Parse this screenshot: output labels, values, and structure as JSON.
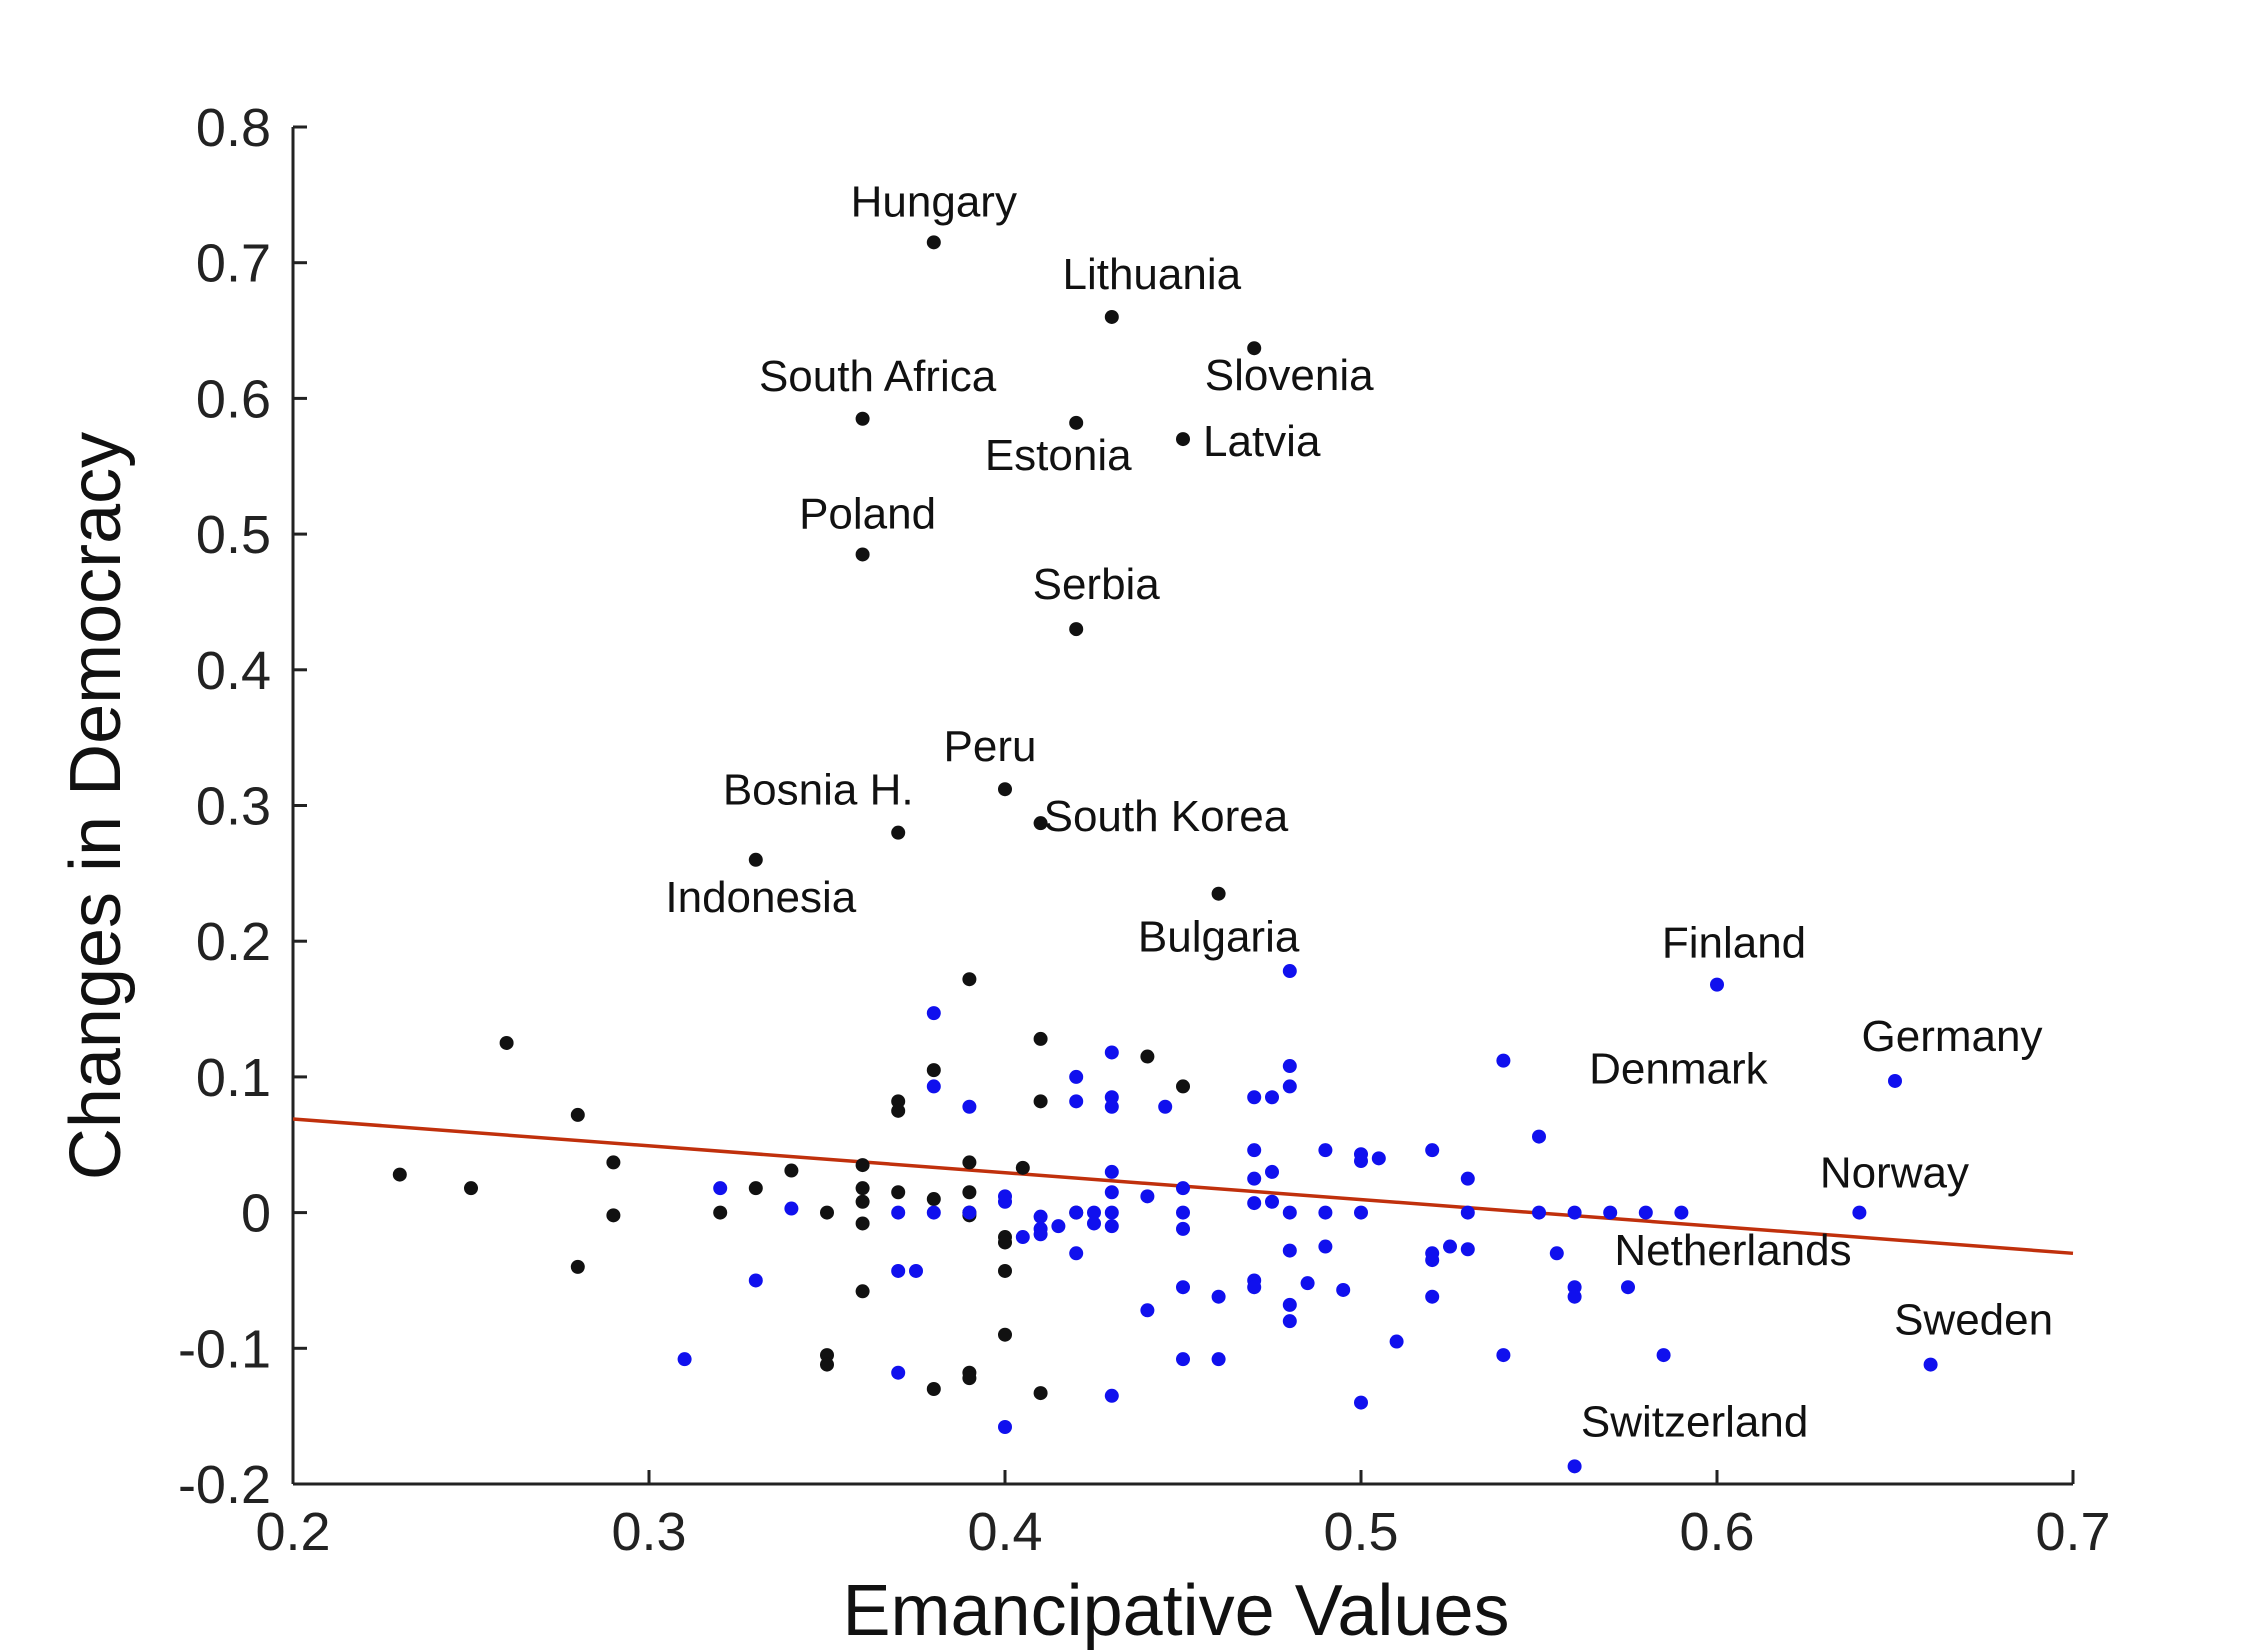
{
  "chart_data": {
    "type": "scatter",
    "xlabel": "Emancipative Values",
    "ylabel": "Changes in Democracy",
    "xlim": [
      0.2,
      0.7
    ],
    "ylim": [
      -0.2,
      0.8
    ],
    "xticks": [
      "0.2",
      "0.3",
      "0.4",
      "0.5",
      "0.6",
      "0.7"
    ],
    "yticks": [
      "-0.2",
      "-0.1",
      "0",
      "0.1",
      "0.2",
      "0.3",
      "0.4",
      "0.5",
      "0.6",
      "0.7",
      "0.8"
    ],
    "grid": false,
    "colors": {
      "black_series": "#111111",
      "blue_series": "#1010ee",
      "trend": "#c0300c"
    },
    "trend_line": {
      "x": [
        0.2,
        0.7
      ],
      "y": [
        0.069,
        -0.03
      ]
    },
    "labeled_points": [
      {
        "label": "Hungary",
        "x": 0.38,
        "y": 0.715,
        "series": "black"
      },
      {
        "label": "Lithuania",
        "x": 0.43,
        "y": 0.66,
        "series": "black"
      },
      {
        "label": "Slovenia",
        "x": 0.47,
        "y": 0.637,
        "series": "black"
      },
      {
        "label": "South Africa",
        "x": 0.36,
        "y": 0.585,
        "series": "black"
      },
      {
        "label": "Estonia",
        "x": 0.42,
        "y": 0.582,
        "series": "black"
      },
      {
        "label": "Latvia",
        "x": 0.45,
        "y": 0.57,
        "series": "black"
      },
      {
        "label": "Poland",
        "x": 0.36,
        "y": 0.485,
        "series": "black"
      },
      {
        "label": "Serbia",
        "x": 0.42,
        "y": 0.43,
        "series": "black"
      },
      {
        "label": "Peru",
        "x": 0.4,
        "y": 0.312,
        "series": "black"
      },
      {
        "label": "Bosnia H.",
        "x": 0.37,
        "y": 0.28,
        "series": "black"
      },
      {
        "label": "South Korea",
        "x": 0.41,
        "y": 0.287,
        "series": "black"
      },
      {
        "label": "Indonesia",
        "x": 0.33,
        "y": 0.26,
        "series": "black"
      },
      {
        "label": "Bulgaria",
        "x": 0.46,
        "y": 0.235,
        "series": "black"
      },
      {
        "label": "Finland",
        "x": 0.6,
        "y": 0.168,
        "series": "blue"
      },
      {
        "label": "Germany",
        "x": 0.65,
        "y": 0.097,
        "series": "blue"
      },
      {
        "label": "Denmark",
        "x": 0.54,
        "y": 0.112,
        "series": "blue"
      },
      {
        "label": "Norway",
        "x": 0.64,
        "y": 0.0,
        "series": "blue"
      },
      {
        "label": "Netherlands",
        "x": 0.575,
        "y": -0.055,
        "series": "blue"
      },
      {
        "label": "Sweden",
        "x": 0.66,
        "y": -0.112,
        "series": "blue"
      },
      {
        "label": "Switzerland",
        "x": 0.56,
        "y": -0.187,
        "series": "blue"
      }
    ],
    "series": [
      {
        "color_key": "black",
        "points": [
          [
            0.23,
            0.028
          ],
          [
            0.25,
            0.018
          ],
          [
            0.26,
            0.125
          ],
          [
            0.28,
            0.072
          ],
          [
            0.28,
            -0.04
          ],
          [
            0.29,
            0.037
          ],
          [
            0.29,
            -0.002
          ],
          [
            0.32,
            0.0
          ],
          [
            0.33,
            0.018
          ],
          [
            0.34,
            0.031
          ],
          [
            0.35,
            0.0
          ],
          [
            0.35,
            -0.105
          ],
          [
            0.35,
            -0.112
          ],
          [
            0.36,
            0.035
          ],
          [
            0.36,
            0.018
          ],
          [
            0.36,
            0.008
          ],
          [
            0.36,
            -0.008
          ],
          [
            0.36,
            -0.058
          ],
          [
            0.37,
            0.082
          ],
          [
            0.37,
            0.075
          ],
          [
            0.37,
            0.015
          ],
          [
            0.38,
            0.105
          ],
          [
            0.38,
            0.01
          ],
          [
            0.38,
            -0.13
          ],
          [
            0.39,
            0.172
          ],
          [
            0.39,
            0.037
          ],
          [
            0.39,
            0.015
          ],
          [
            0.39,
            0.0
          ],
          [
            0.39,
            -0.002
          ],
          [
            0.39,
            -0.118
          ],
          [
            0.39,
            -0.122
          ],
          [
            0.4,
            -0.018
          ],
          [
            0.4,
            -0.022
          ],
          [
            0.4,
            -0.043
          ],
          [
            0.4,
            -0.09
          ],
          [
            0.405,
            0.033
          ],
          [
            0.41,
            0.128
          ],
          [
            0.41,
            0.082
          ],
          [
            0.41,
            -0.133
          ],
          [
            0.42,
            0.0
          ],
          [
            0.44,
            0.115
          ],
          [
            0.45,
            0.093
          ]
        ]
      },
      {
        "color_key": "blue",
        "points": [
          [
            0.31,
            -0.108
          ],
          [
            0.32,
            0.018
          ],
          [
            0.33,
            -0.05
          ],
          [
            0.34,
            0.003
          ],
          [
            0.37,
            0.0
          ],
          [
            0.37,
            -0.043
          ],
          [
            0.37,
            -0.118
          ],
          [
            0.375,
            -0.043
          ],
          [
            0.38,
            0.147
          ],
          [
            0.38,
            0.093
          ],
          [
            0.38,
            0.0
          ],
          [
            0.39,
            0.078
          ],
          [
            0.39,
            0.0
          ],
          [
            0.4,
            0.012
          ],
          [
            0.4,
            0.008
          ],
          [
            0.4,
            -0.158
          ],
          [
            0.405,
            -0.018
          ],
          [
            0.41,
            -0.003
          ],
          [
            0.41,
            -0.012
          ],
          [
            0.41,
            -0.016
          ],
          [
            0.415,
            -0.01
          ],
          [
            0.42,
            0.1
          ],
          [
            0.42,
            0.082
          ],
          [
            0.42,
            0.0
          ],
          [
            0.42,
            -0.03
          ],
          [
            0.425,
            0.0
          ],
          [
            0.425,
            -0.008
          ],
          [
            0.43,
            0.118
          ],
          [
            0.43,
            0.085
          ],
          [
            0.43,
            0.078
          ],
          [
            0.43,
            0.03
          ],
          [
            0.43,
            0.015
          ],
          [
            0.43,
            0.0
          ],
          [
            0.43,
            -0.01
          ],
          [
            0.43,
            -0.135
          ],
          [
            0.44,
            0.012
          ],
          [
            0.44,
            -0.072
          ],
          [
            0.445,
            0.078
          ],
          [
            0.45,
            0.018
          ],
          [
            0.45,
            0.0
          ],
          [
            0.45,
            -0.012
          ],
          [
            0.45,
            -0.055
          ],
          [
            0.45,
            -0.108
          ],
          [
            0.46,
            -0.062
          ],
          [
            0.46,
            -0.108
          ],
          [
            0.47,
            0.085
          ],
          [
            0.47,
            0.046
          ],
          [
            0.47,
            0.025
          ],
          [
            0.47,
            0.007
          ],
          [
            0.47,
            -0.05
          ],
          [
            0.47,
            -0.055
          ],
          [
            0.475,
            0.085
          ],
          [
            0.475,
            0.03
          ],
          [
            0.475,
            0.008
          ],
          [
            0.48,
            0.178
          ],
          [
            0.48,
            0.108
          ],
          [
            0.48,
            0.093
          ],
          [
            0.48,
            0.0
          ],
          [
            0.48,
            -0.028
          ],
          [
            0.48,
            -0.068
          ],
          [
            0.48,
            -0.08
          ],
          [
            0.485,
            -0.052
          ],
          [
            0.49,
            0.046
          ],
          [
            0.49,
            0.0
          ],
          [
            0.49,
            -0.025
          ],
          [
            0.495,
            -0.057
          ],
          [
            0.5,
            0.043
          ],
          [
            0.5,
            0.038
          ],
          [
            0.5,
            0.0
          ],
          [
            0.5,
            -0.14
          ],
          [
            0.505,
            0.04
          ],
          [
            0.51,
            -0.095
          ],
          [
            0.52,
            0.046
          ],
          [
            0.52,
            -0.03
          ],
          [
            0.52,
            -0.035
          ],
          [
            0.52,
            -0.062
          ],
          [
            0.525,
            -0.025
          ],
          [
            0.53,
            0.025
          ],
          [
            0.53,
            0.0
          ],
          [
            0.53,
            -0.027
          ],
          [
            0.54,
            -0.105
          ],
          [
            0.55,
            0.056
          ],
          [
            0.55,
            0.0
          ],
          [
            0.555,
            -0.03
          ],
          [
            0.56,
            0.0
          ],
          [
            0.56,
            -0.055
          ],
          [
            0.56,
            -0.062
          ],
          [
            0.57,
            0.0
          ],
          [
            0.58,
            0.0
          ],
          [
            0.585,
            -0.105
          ],
          [
            0.59,
            0.0
          ]
        ]
      }
    ]
  }
}
